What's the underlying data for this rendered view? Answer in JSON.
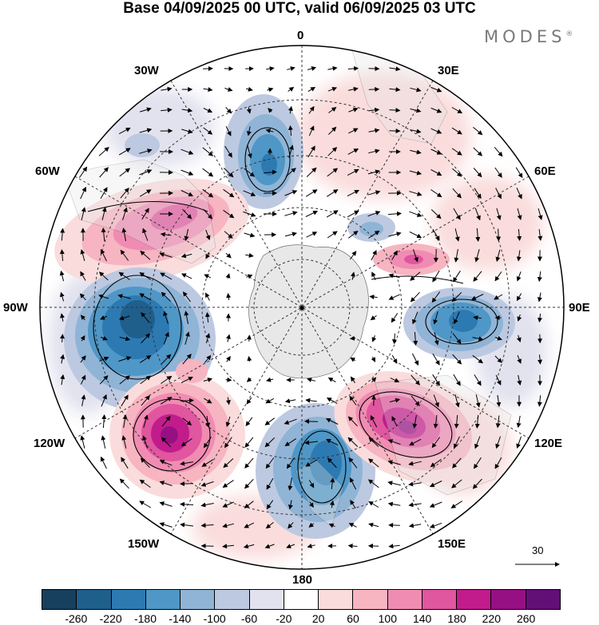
{
  "title": "Base 04/09/2025 00 UTC, valid 06/09/2025 03 UTC",
  "brand": "MODES",
  "brand_mark": "®",
  "lon_labels": {
    "n": "0",
    "ne": "30E",
    "ene": "60E",
    "e": "90E",
    "ese": "120E",
    "se": "150E",
    "s": "180",
    "sw": "150W",
    "wsw": "120W",
    "w": "90W",
    "wnw": "60W",
    "nw": "30W"
  },
  "vector_scale": "30",
  "colorbar": {
    "colors": [
      "#17405e",
      "#1f5f8c",
      "#2d7ab3",
      "#4f97c7",
      "#8fb4d6",
      "#bcc9e1",
      "#e2e2ef",
      "#ffffff",
      "#fadcdc",
      "#f7b4c1",
      "#f08cb2",
      "#e0569f",
      "#c21c8c",
      "#971083",
      "#620f76"
    ],
    "ticks": [
      "-260",
      "-220",
      "-180",
      "-140",
      "-100",
      "-60",
      "-20",
      "20",
      "60",
      "100",
      "140",
      "180",
      "220",
      "260"
    ]
  }
}
